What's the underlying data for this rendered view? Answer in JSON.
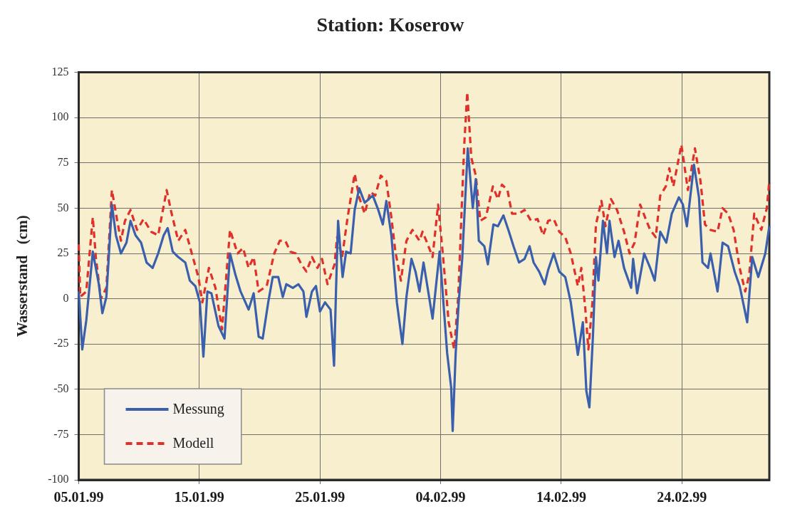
{
  "chart_data": {
    "type": "line",
    "title": "Station: Koserow",
    "ylabel": "Wasserstand   (cm)",
    "xlim": [
      "1999-01-05",
      "1999-03-03T06:00"
    ],
    "xticks": [
      {
        "value": "1999-01-05",
        "label": "05.01.99"
      },
      {
        "value": "1999-01-15",
        "label": "15.01.99"
      },
      {
        "value": "1999-01-25",
        "label": "25.01.99"
      },
      {
        "value": "1999-02-04",
        "label": "04.02.99"
      },
      {
        "value": "1999-02-14",
        "label": "14.02.99"
      },
      {
        "value": "1999-02-24",
        "label": "24.02.99"
      }
    ],
    "ylim": [
      -100,
      125
    ],
    "yticks": [
      -100,
      -75,
      -50,
      -25,
      0,
      25,
      50,
      75,
      100,
      125
    ],
    "grid": true,
    "legend": "bottom left",
    "series": [
      {
        "name": "Messung",
        "color": "#3a5fad",
        "line_style": "solid",
        "x": [
          "1999-01-05T00:00",
          "1999-01-05T07:00",
          "1999-01-05T15:00",
          "1999-01-06T04:00",
          "1999-01-06T16:00",
          "1999-01-06T23:00",
          "1999-01-07T07:00",
          "1999-01-07T18:00",
          "1999-01-08T02:00",
          "1999-01-08T12:00",
          "1999-01-08T23:00",
          "1999-01-09T07:00",
          "1999-01-09T17:00",
          "1999-01-10T04:00",
          "1999-01-10T15:00",
          "1999-01-11T03:00",
          "1999-01-11T14:00",
          "1999-01-12T01:00",
          "1999-01-12T09:00",
          "1999-01-12T19:00",
          "1999-01-13T06:00",
          "1999-01-13T20:00",
          "1999-01-14T05:00",
          "1999-01-14T16:00",
          "1999-01-15T01:00",
          "1999-01-15T08:00",
          "1999-01-15T16:00",
          "1999-01-16T00:00",
          "1999-01-16T14:00",
          "1999-01-17T02:00",
          "1999-01-17T13:00",
          "1999-01-18T00:00",
          "1999-01-18T10:00",
          "1999-01-19T02:00",
          "1999-01-19T12:00",
          "1999-01-19T22:00",
          "1999-01-20T06:00",
          "1999-01-20T17:00",
          "1999-01-21T02:00",
          "1999-01-21T13:00",
          "1999-01-21T22:00",
          "1999-01-22T05:00",
          "1999-01-22T18:00",
          "1999-01-23T05:00",
          "1999-01-23T15:00",
          "1999-01-23T21:00",
          "1999-01-24T08:00",
          "1999-01-24T16:00",
          "1999-01-25T00:00",
          "1999-01-25T10:00",
          "1999-01-25T21:00",
          "1999-01-26T04:00",
          "1999-01-26T08:00",
          "1999-01-26T12:00",
          "1999-01-26T21:00",
          "1999-01-27T04:00",
          "1999-01-27T13:00",
          "1999-01-27T21:00",
          "1999-01-28T06:00",
          "1999-01-28T17:00",
          "1999-01-29T09:00",
          "1999-01-29T20:00",
          "1999-01-30T05:00",
          "1999-01-30T12:00",
          "1999-01-30T22:00",
          "1999-01-31T09:00",
          "1999-01-31T20:00",
          "1999-02-01T04:00",
          "1999-02-01T14:00",
          "1999-02-01T22:00",
          "1999-02-02T06:00",
          "1999-02-02T14:00",
          "1999-02-02T21:00",
          "1999-02-03T08:00",
          "1999-02-03T22:00",
          "1999-02-04T05:00",
          "1999-02-04T13:00",
          "1999-02-04T21:00",
          "1999-02-05T00:00",
          "1999-02-05T06:00",
          "1999-02-05T12:00",
          "1999-02-05T19:00",
          "1999-02-06T06:00",
          "1999-02-06T16:00",
          "1999-02-06T22:00",
          "1999-02-07T04:00",
          "1999-02-07T15:00",
          "1999-02-07T22:00",
          "1999-02-08T09:00",
          "1999-02-08T18:00",
          "1999-02-09T05:00",
          "1999-02-09T16:00",
          "1999-02-10T01:00",
          "1999-02-10T12:00",
          "1999-02-10T23:00",
          "1999-02-11T09:00",
          "1999-02-11T17:00",
          "1999-02-12T04:00",
          "1999-02-12T15:00",
          "1999-02-12T22:00",
          "1999-02-13T09:00",
          "1999-02-13T20:00",
          "1999-02-14T08:00",
          "1999-02-14T19:00",
          "1999-02-15T09:00",
          "1999-02-15T19:00",
          "1999-02-16T02:00",
          "1999-02-16T08:00",
          "1999-02-16T15:00",
          "1999-02-16T21:00",
          "1999-02-17T02:00",
          "1999-02-17T11:00",
          "1999-02-17T19:00",
          "1999-02-18T00:00",
          "1999-02-18T10:00",
          "1999-02-18T18:00",
          "1999-02-19T05:00",
          "1999-02-19T19:00",
          "1999-02-19T23:00",
          "1999-02-20T07:00",
          "1999-02-20T21:00",
          "1999-02-21T09:00",
          "1999-02-21T18:00",
          "1999-02-22T05:00",
          "1999-02-22T17:00",
          "1999-02-23T04:00",
          "1999-02-23T18:00",
          "1999-02-24T02:00",
          "1999-02-24T10:00",
          "1999-02-25T00:00",
          "1999-02-25T10:00",
          "1999-02-25T17:00",
          "1999-02-26T04:00",
          "1999-02-26T09:00",
          "1999-02-26T23:00",
          "1999-02-27T09:00",
          "1999-02-27T20:00",
          "1999-02-28T09:00",
          "1999-02-28T19:00",
          "1999-03-01T10:00",
          "1999-03-01T20:00",
          "1999-03-02T08:00",
          "1999-03-02T22:00",
          "1999-03-03T06:00"
        ],
        "values": [
          4,
          -28,
          -12,
          26,
          8,
          -8,
          1,
          52,
          35,
          25,
          31,
          43,
          35,
          31,
          20,
          17,
          25,
          35,
          39,
          26,
          23,
          20,
          10,
          7,
          -2,
          -32,
          4,
          3,
          -15,
          -22,
          25,
          13,
          4,
          -6,
          3,
          -21,
          -22,
          -2,
          12,
          12,
          1,
          8,
          6,
          8,
          4,
          -10,
          4,
          7,
          -7,
          -2,
          -6,
          -37,
          6,
          43,
          12,
          26,
          25,
          49,
          61,
          53,
          57,
          49,
          41,
          54,
          35,
          -2,
          -25,
          1,
          22,
          15,
          4,
          20,
          8,
          -11,
          26,
          0,
          -30,
          -49,
          -73,
          -30,
          -2,
          22,
          83,
          50,
          66,
          32,
          29,
          19,
          41,
          40,
          46,
          37,
          29,
          20,
          22,
          29,
          20,
          15,
          8,
          16,
          25,
          15,
          12,
          -2,
          -31,
          -13,
          -51,
          -60,
          -21,
          23,
          10,
          43,
          25,
          43,
          23,
          32,
          17,
          6,
          22,
          3,
          25,
          17,
          10,
          37,
          31,
          47,
          56,
          52,
          40,
          74,
          56,
          20,
          17,
          25,
          4,
          31,
          29,
          15,
          7,
          -13,
          23,
          12,
          25,
          40
        ]
      },
      {
        "name": "Modell",
        "color": "#e0302a",
        "line_style": "dashed",
        "x": [
          "1999-01-05T00:00",
          "1999-01-05T03:00",
          "1999-01-05T15:00",
          "1999-01-06T04:00",
          "1999-01-06T10:00",
          "1999-01-06T20:00",
          "1999-01-07T07:00",
          "1999-01-07T18:00",
          "1999-01-08T04:00",
          "1999-01-08T12:00",
          "1999-01-08T20:00",
          "1999-01-09T07:00",
          "1999-01-09T20:00",
          "1999-01-10T09:00",
          "1999-01-11T00:00",
          "1999-01-11T14:00",
          "1999-01-12T07:00",
          "1999-01-12T16:00",
          "1999-01-13T06:00",
          "1999-01-13T20:00",
          "1999-01-14T08:00",
          "1999-01-14T22:00",
          "1999-01-15T06:00",
          "1999-01-15T19:00",
          "1999-01-16T08:00",
          "1999-01-16T21:00",
          "1999-01-17T13:00",
          "1999-01-18T04:00",
          "1999-01-18T15:00",
          "1999-01-19T02:00",
          "1999-01-19T12:00",
          "1999-01-19T22:00",
          "1999-01-20T14:00",
          "1999-01-21T05:00",
          "1999-01-21T16:00",
          "1999-01-22T03:00",
          "1999-01-22T13:00",
          "1999-01-23T00:00",
          "1999-01-23T11:00",
          "1999-01-23T21:00",
          "1999-01-24T08:00",
          "1999-01-24T19:00",
          "1999-01-25T04:00",
          "1999-01-25T15:00",
          "1999-01-26T05:00",
          "1999-01-26T10:00",
          "1999-01-26T20:00",
          "1999-01-27T07:00",
          "1999-01-27T21:00",
          "1999-01-28T06:00",
          "1999-01-28T17:00",
          "1999-01-29T04:00",
          "1999-01-29T14:00",
          "1999-01-30T01:00",
          "1999-01-30T12:00",
          "1999-01-30T22:00",
          "1999-01-31T06:00",
          "1999-01-31T17:00",
          "1999-02-01T04:00",
          "1999-02-01T16:00",
          "1999-02-02T06:00",
          "1999-02-02T12:00",
          "1999-02-02T21:00",
          "1999-02-03T08:00",
          "1999-02-03T19:00",
          "1999-02-04T05:00",
          "1999-02-04T16:00",
          "1999-02-05T03:00",
          "1999-02-05T11:00",
          "1999-02-05T18:00",
          "1999-02-05T23:00",
          "1999-02-06T05:00",
          "1999-02-06T13:00",
          "1999-02-06T22:00",
          "1999-02-07T07:00",
          "1999-02-07T18:00",
          "1999-02-08T08:00",
          "1999-02-08T18:00",
          "1999-02-09T02:00",
          "1999-02-09T13:00",
          "1999-02-09T22:00",
          "1999-02-10T12:00",
          "1999-02-10T23:00",
          "1999-02-11T12:00",
          "1999-02-12T01:00",
          "1999-02-12T12:00",
          "1999-02-12T22:00",
          "1999-02-13T09:00",
          "1999-02-13T20:00",
          "1999-02-14T08:00",
          "1999-02-14T19:00",
          "1999-02-15T09:00",
          "1999-02-15T16:00",
          "1999-02-16T00:00",
          "1999-02-16T06:00",
          "1999-02-16T14:00",
          "1999-02-16T21:00",
          "1999-02-17T08:00",
          "1999-02-17T16:00",
          "1999-02-18T03:00",
          "1999-02-18T15:00",
          "1999-02-19T05:00",
          "1999-02-19T16:00",
          "1999-02-20T02:00",
          "1999-02-20T13:00",
          "1999-02-21T00:00",
          "1999-02-21T09:00",
          "1999-02-21T20:00",
          "1999-02-22T05:00",
          "1999-02-22T16:00",
          "1999-02-22T23:00",
          "1999-02-23T07:00",
          "1999-02-23T23:00",
          "1999-02-24T12:00",
          "1999-02-25T02:00",
          "1999-02-25T13:00",
          "1999-02-25T22:00",
          "1999-02-26T09:00",
          "1999-02-26T23:00",
          "1999-02-27T09:00",
          "1999-02-27T20:00",
          "1999-02-28T07:00",
          "1999-02-28T19:00",
          "1999-03-01T06:00",
          "1999-03-01T14:00",
          "1999-03-02T00:00",
          "1999-03-02T14:00",
          "1999-03-03T01:00",
          "1999-03-03T06:00"
        ],
        "values": [
          30,
          1,
          4,
          45,
          23,
          0,
          6,
          60,
          44,
          32,
          43,
          49,
          38,
          44,
          37,
          35,
          60,
          48,
          32,
          38,
          26,
          12,
          -2,
          17,
          6,
          -17,
          38,
          25,
          28,
          17,
          23,
          4,
          7,
          25,
          32,
          32,
          26,
          25,
          19,
          15,
          23,
          17,
          22,
          8,
          19,
          34,
          23,
          45,
          69,
          56,
          47,
          59,
          57,
          68,
          65,
          45,
          26,
          10,
          32,
          38,
          32,
          37,
          31,
          23,
          52,
          23,
          -13,
          -28,
          1,
          50,
          85,
          114,
          78,
          68,
          43,
          45,
          62,
          55,
          63,
          60,
          47,
          47,
          49,
          43,
          44,
          35,
          43,
          44,
          37,
          34,
          25,
          7,
          17,
          -6,
          -28,
          -2,
          41,
          54,
          40,
          55,
          49,
          37,
          25,
          31,
          52,
          44,
          38,
          34,
          57,
          62,
          72,
          62,
          85,
          60,
          83,
          65,
          41,
          38,
          37,
          50,
          47,
          38,
          17,
          4,
          13,
          47,
          38,
          50,
          65
        ]
      }
    ]
  }
}
